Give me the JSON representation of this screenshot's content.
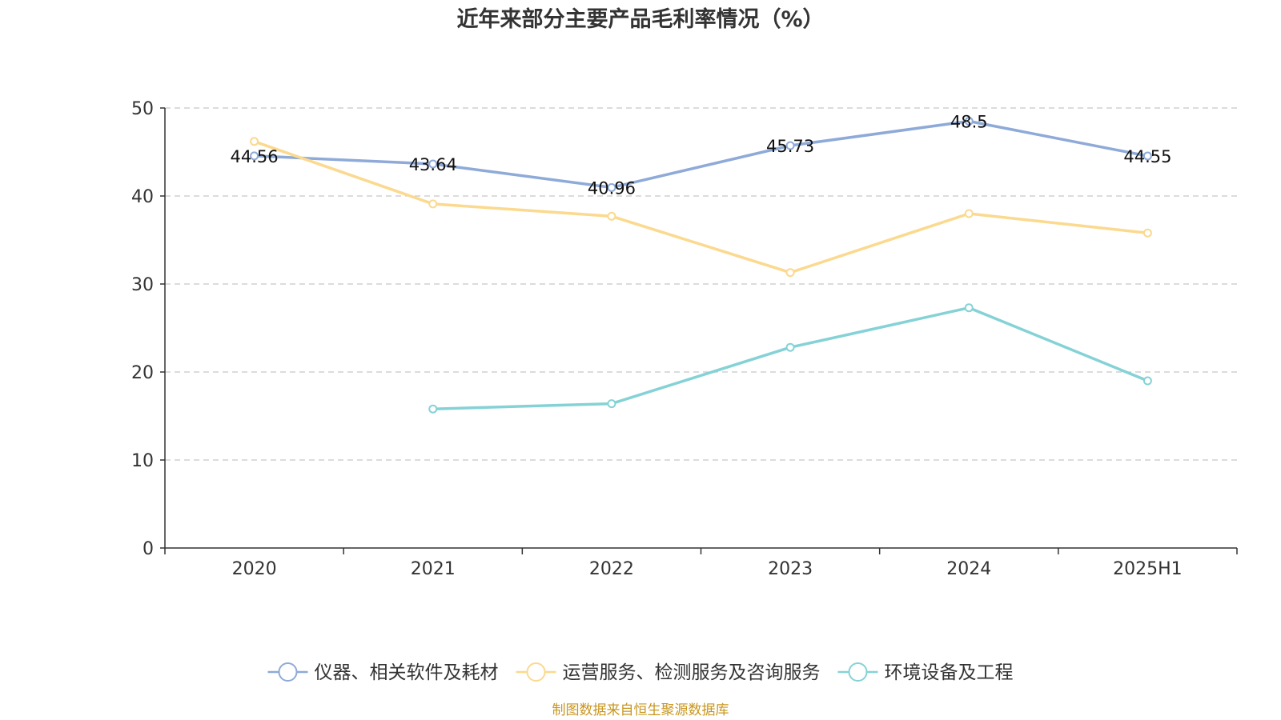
{
  "chart_data": {
    "type": "line",
    "title": "近年来部分主要产品毛利率情况（%）",
    "xlabel": "",
    "ylabel": "",
    "categories": [
      "2020",
      "2021",
      "2022",
      "2023",
      "2024",
      "2025H1"
    ],
    "ylim": [
      0,
      50
    ],
    "yticks": [
      0,
      10,
      20,
      30,
      40,
      50
    ],
    "grid": "horizontal-dashed",
    "legend_position": "bottom",
    "series": [
      {
        "name": "仪器、相关软件及耗材",
        "color": "#8eaad8",
        "values": [
          44.56,
          43.64,
          40.96,
          45.73,
          48.5,
          44.55
        ],
        "labels": [
          "44.56",
          "43.64",
          "40.96",
          "45.73",
          "48.5",
          "44.55"
        ]
      },
      {
        "name": "运营服务、检测服务及咨询服务",
        "color": "#fbd98e",
        "values": [
          46.2,
          39.1,
          37.7,
          31.3,
          38.0,
          35.8
        ],
        "labels": []
      },
      {
        "name": "环境设备及工程",
        "color": "#85d2d6",
        "values": [
          null,
          15.8,
          16.4,
          22.8,
          27.3,
          19.0
        ],
        "labels": []
      }
    ],
    "source": "制图数据来自恒生聚源数据库",
    "source_color": "#c8961e"
  }
}
